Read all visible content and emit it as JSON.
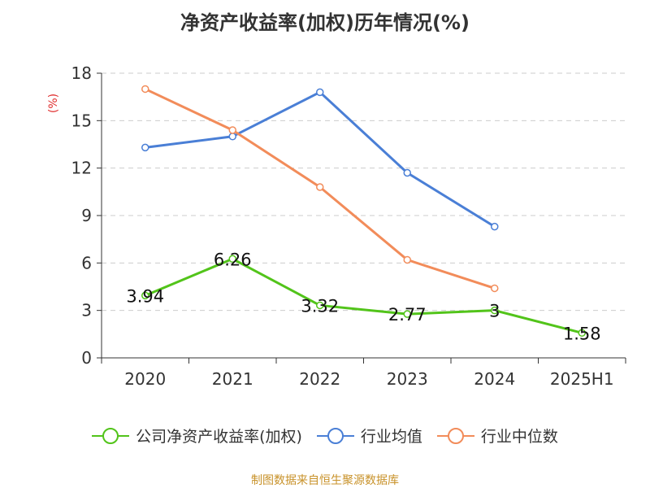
{
  "chart_data": {
    "type": "line",
    "title": "净资产收益率(加权)历年情况(%)",
    "ylabel": "(%)",
    "xlabel": "",
    "categories": [
      "2020",
      "2021",
      "2022",
      "2023",
      "2024",
      "2025H1"
    ],
    "ylim": [
      0,
      18
    ],
    "yticks": [
      "0",
      "3",
      "6",
      "9",
      "12",
      "15",
      "18"
    ],
    "grid": true,
    "legend_position": "bottom",
    "series": [
      {
        "name": "公司净资产收益率(加权)",
        "color": "#52c41a",
        "values": [
          3.94,
          6.26,
          3.32,
          2.77,
          3,
          1.58
        ],
        "labels": [
          "3.94",
          "6.26",
          "3.32",
          "2.77",
          "3",
          "1.58"
        ]
      },
      {
        "name": "行业均值",
        "color": "#4a7fd6",
        "values": [
          13.3,
          14.0,
          16.8,
          11.7,
          8.3,
          null
        ]
      },
      {
        "name": "行业中位数",
        "color": "#f28c5a",
        "values": [
          17.0,
          14.4,
          10.8,
          6.2,
          4.4,
          null
        ]
      }
    ]
  },
  "footer": "制图数据来自恒生聚源数据库"
}
